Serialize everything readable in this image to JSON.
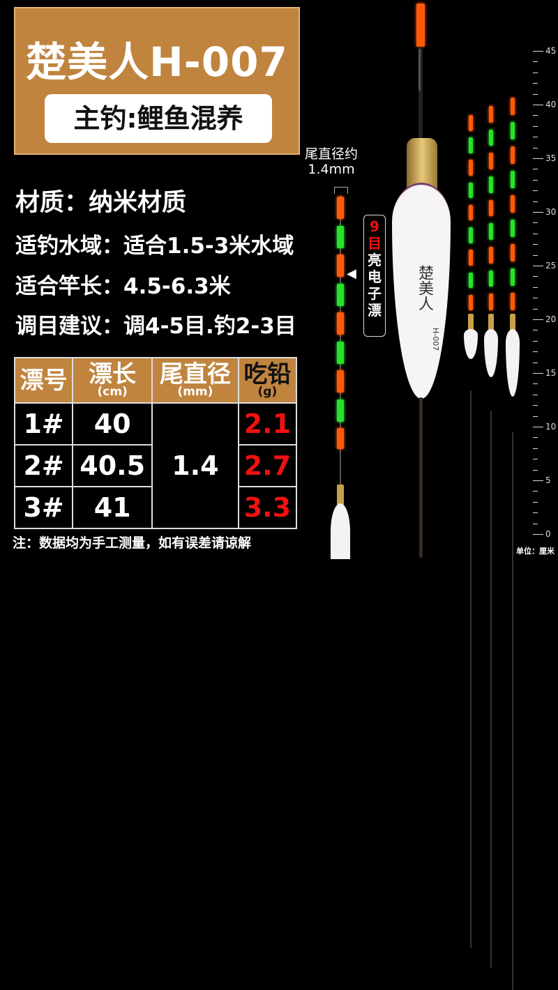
{
  "header": {
    "title": "楚美人H-007",
    "subtitle": "主钓:鲤鱼混养"
  },
  "specs": [
    "材质：纳米材质",
    "适钓水域：适合1.5-3米水域",
    "适合竿长：4.5-6.3米",
    "调目建议：调4-5目.钓2-3目"
  ],
  "tail_label": {
    "line1": "尾直径约",
    "line2": "1.4mm"
  },
  "badge": {
    "count": "9",
    "unit": "目",
    "text": [
      "亮",
      "电",
      "子",
      "漂"
    ]
  },
  "body_print": {
    "brand": "楚美人",
    "model": "H-007"
  },
  "table": {
    "headers": [
      {
        "label": "漂号",
        "unit": ""
      },
      {
        "label": "漂长",
        "unit": "(cm)"
      },
      {
        "label": "尾直径",
        "unit": "(mm)"
      },
      {
        "label": "吃铅",
        "unit": "(g)"
      }
    ],
    "rows": [
      {
        "no": "1#",
        "length": "40",
        "weight": "2.1"
      },
      {
        "no": "2#",
        "length": "40.5",
        "weight": "2.7"
      },
      {
        "no": "3#",
        "length": "41",
        "weight": "3.3"
      }
    ],
    "diameter": "1.4"
  },
  "note": "注：数据均为手工测量，如有误差请谅解",
  "ruler": {
    "min": 0,
    "max": 45,
    "major_step": 5,
    "unit_label": "单位：厘米"
  },
  "colors": {
    "accent": "#c0843f",
    "red": "#f21010",
    "led_orange": "#ff5a0a",
    "led_green": "#27e22a"
  }
}
